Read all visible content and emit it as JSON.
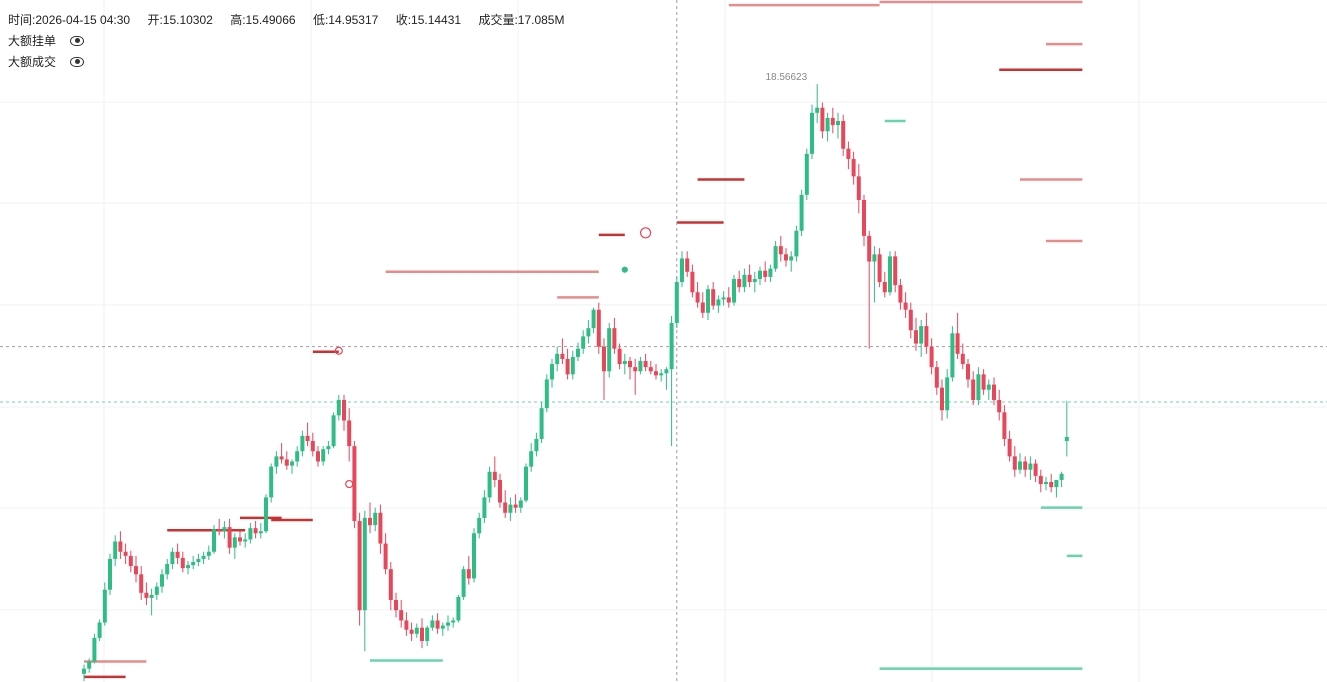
{
  "legend": {
    "time_label": "时间:",
    "time_value": "2026-04-15 04:30",
    "open_label": "开:",
    "open_value": "15.10302",
    "high_label": "高:",
    "high_value": "15.49066",
    "low_label": "低:",
    "low_value": "14.95317",
    "close_label": "收:",
    "close_value": "15.14431",
    "volume_label": "成交量:",
    "volume_value": "17.085M"
  },
  "overlays": [
    {
      "label": "大额挂单",
      "icon": "eye-icon"
    },
    {
      "label": "大额成交",
      "icon": "eye-icon"
    }
  ],
  "colors": {
    "up": "#2ebd85",
    "down": "#e8465a",
    "ask_line": "#e07070",
    "bid_line": "#5fd3a6",
    "dark_red": "#c62828"
  },
  "chart_data": {
    "type": "candlestick",
    "title": "",
    "high_marker_label": "18.56623",
    "ylim": [
      12.75,
      19.4
    ],
    "candles": [
      [
        12.83,
        12.92,
        12.76,
        12.88
      ],
      [
        12.88,
        12.98,
        12.84,
        12.95
      ],
      [
        12.95,
        13.22,
        12.93,
        13.18
      ],
      [
        13.18,
        13.36,
        13.15,
        13.33
      ],
      [
        13.33,
        13.72,
        13.3,
        13.65
      ],
      [
        13.65,
        14.0,
        13.6,
        13.95
      ],
      [
        13.95,
        14.18,
        13.88,
        14.12
      ],
      [
        14.12,
        14.22,
        13.95,
        14.02
      ],
      [
        14.02,
        14.1,
        13.9,
        13.98
      ],
      [
        13.98,
        14.03,
        13.82,
        13.88
      ],
      [
        13.88,
        13.98,
        13.72,
        13.8
      ],
      [
        13.8,
        13.88,
        13.55,
        13.62
      ],
      [
        13.62,
        13.72,
        13.5,
        13.57
      ],
      [
        13.57,
        13.66,
        13.4,
        13.6
      ],
      [
        13.6,
        13.72,
        13.55,
        13.68
      ],
      [
        13.68,
        13.85,
        13.62,
        13.8
      ],
      [
        13.8,
        13.95,
        13.75,
        13.9
      ],
      [
        13.9,
        14.06,
        13.85,
        14.02
      ],
      [
        14.02,
        14.1,
        13.9,
        13.96
      ],
      [
        13.96,
        14.02,
        13.82,
        13.86
      ],
      [
        13.86,
        13.93,
        13.8,
        13.89
      ],
      [
        13.89,
        13.98,
        13.85,
        13.92
      ],
      [
        13.92,
        14.0,
        13.88,
        13.95
      ],
      [
        13.95,
        14.02,
        13.9,
        13.98
      ],
      [
        13.98,
        14.08,
        13.94,
        14.02
      ],
      [
        14.02,
        14.28,
        14.0,
        14.24
      ],
      [
        14.24,
        14.34,
        14.18,
        14.22
      ],
      [
        14.22,
        14.32,
        14.15,
        14.26
      ],
      [
        14.26,
        14.34,
        14.0,
        14.06
      ],
      [
        14.06,
        14.2,
        13.95,
        14.16
      ],
      [
        14.16,
        14.22,
        14.08,
        14.12
      ],
      [
        14.12,
        14.2,
        14.06,
        14.14
      ],
      [
        14.14,
        14.3,
        14.1,
        14.25
      ],
      [
        14.25,
        14.32,
        14.15,
        14.2
      ],
      [
        14.2,
        14.3,
        14.15,
        14.22
      ],
      [
        14.22,
        14.58,
        14.2,
        14.55
      ],
      [
        14.55,
        14.88,
        14.5,
        14.85
      ],
      [
        14.85,
        15.0,
        14.78,
        14.95
      ],
      [
        14.95,
        15.08,
        14.88,
        14.92
      ],
      [
        14.92,
        15.0,
        14.82,
        14.86
      ],
      [
        14.86,
        14.92,
        14.78,
        14.9
      ],
      [
        14.9,
        15.05,
        14.85,
        15.0
      ],
      [
        15.0,
        15.2,
        14.95,
        15.15
      ],
      [
        15.15,
        15.28,
        15.05,
        15.1
      ],
      [
        15.1,
        15.18,
        14.95,
        15.0
      ],
      [
        15.0,
        15.05,
        14.85,
        14.9
      ],
      [
        14.9,
        15.05,
        14.86,
        15.02
      ],
      [
        15.02,
        15.1,
        14.97,
        15.05
      ],
      [
        15.05,
        15.38,
        15.03,
        15.35
      ],
      [
        15.35,
        15.55,
        15.3,
        15.5
      ],
      [
        15.5,
        15.55,
        15.2,
        15.3
      ],
      [
        15.3,
        15.42,
        14.9,
        15.05
      ],
      [
        15.05,
        15.1,
        14.25,
        14.32
      ],
      [
        14.32,
        14.4,
        13.3,
        13.45
      ],
      [
        13.45,
        14.42,
        13.05,
        14.35
      ],
      [
        14.35,
        14.5,
        14.2,
        14.28
      ],
      [
        14.28,
        14.45,
        14.22,
        14.4
      ],
      [
        14.4,
        14.48,
        14.0,
        14.1
      ],
      [
        14.1,
        14.2,
        13.8,
        13.85
      ],
      [
        13.85,
        13.92,
        13.45,
        13.55
      ],
      [
        13.55,
        13.62,
        13.38,
        13.45
      ],
      [
        13.45,
        13.55,
        13.28,
        13.35
      ],
      [
        13.35,
        13.43,
        13.2,
        13.26
      ],
      [
        13.26,
        13.33,
        13.15,
        13.22
      ],
      [
        13.22,
        13.32,
        13.18,
        13.28
      ],
      [
        13.28,
        13.37,
        13.08,
        13.15
      ],
      [
        13.15,
        13.3,
        13.1,
        13.28
      ],
      [
        13.28,
        13.4,
        13.25,
        13.35
      ],
      [
        13.35,
        13.42,
        13.22,
        13.27
      ],
      [
        13.27,
        13.33,
        13.2,
        13.3
      ],
      [
        13.3,
        13.4,
        13.25,
        13.33
      ],
      [
        13.33,
        13.38,
        13.28,
        13.35
      ],
      [
        13.35,
        13.6,
        13.33,
        13.58
      ],
      [
        13.58,
        13.88,
        13.55,
        13.85
      ],
      [
        13.85,
        13.98,
        13.7,
        13.76
      ],
      [
        13.76,
        14.25,
        13.72,
        14.2
      ],
      [
        14.2,
        14.4,
        14.15,
        14.35
      ],
      [
        14.35,
        14.62,
        14.3,
        14.55
      ],
      [
        14.55,
        14.85,
        14.5,
        14.8
      ],
      [
        14.8,
        14.95,
        14.65,
        14.72
      ],
      [
        14.72,
        14.78,
        14.45,
        14.5
      ],
      [
        14.5,
        14.62,
        14.35,
        14.4
      ],
      [
        14.4,
        14.55,
        14.32,
        14.48
      ],
      [
        14.48,
        14.58,
        14.4,
        14.45
      ],
      [
        14.45,
        14.55,
        14.4,
        14.52
      ],
      [
        14.52,
        14.88,
        14.5,
        14.85
      ],
      [
        14.85,
        15.08,
        14.8,
        15.0
      ],
      [
        15.0,
        15.18,
        14.95,
        15.12
      ],
      [
        15.12,
        15.48,
        15.08,
        15.42
      ],
      [
        15.42,
        15.75,
        15.38,
        15.7
      ],
      [
        15.7,
        15.9,
        15.62,
        15.85
      ],
      [
        15.85,
        16.02,
        15.78,
        15.95
      ],
      [
        15.95,
        16.1,
        15.85,
        15.9
      ],
      [
        15.9,
        16.0,
        15.7,
        15.75
      ],
      [
        15.75,
        15.98,
        15.7,
        15.92
      ],
      [
        15.92,
        16.06,
        15.88,
        16.0
      ],
      [
        16.0,
        16.18,
        15.95,
        16.12
      ],
      [
        16.12,
        16.28,
        16.05,
        16.2
      ],
      [
        16.2,
        16.4,
        16.15,
        16.38
      ],
      [
        16.38,
        16.45,
        15.95,
        16.02
      ],
      [
        16.02,
        16.1,
        15.5,
        15.78
      ],
      [
        15.78,
        16.25,
        15.72,
        16.2
      ],
      [
        16.2,
        16.3,
        15.95,
        16.0
      ],
      [
        16.0,
        16.05,
        15.8,
        15.85
      ],
      [
        15.85,
        15.95,
        15.75,
        15.88
      ],
      [
        15.88,
        15.92,
        15.7,
        15.82
      ],
      [
        15.82,
        15.9,
        15.55,
        15.78
      ],
      [
        15.78,
        15.92,
        15.75,
        15.88
      ],
      [
        15.88,
        15.95,
        15.78,
        15.82
      ],
      [
        15.82,
        15.88,
        15.75,
        15.78
      ],
      [
        15.78,
        15.85,
        15.7,
        15.74
      ],
      [
        15.74,
        15.8,
        15.68,
        15.76
      ],
      [
        15.76,
        15.82,
        15.6,
        15.8
      ],
      [
        15.8,
        16.32,
        15.05,
        16.25
      ],
      [
        16.25,
        16.7,
        16.2,
        16.65
      ],
      [
        16.65,
        16.95,
        16.6,
        16.88
      ],
      [
        16.88,
        16.95,
        16.7,
        16.75
      ],
      [
        16.75,
        16.82,
        16.5,
        16.55
      ],
      [
        16.55,
        16.65,
        16.4,
        16.45
      ],
      [
        16.45,
        16.55,
        16.3,
        16.35
      ],
      [
        16.35,
        16.62,
        16.28,
        16.58
      ],
      [
        16.58,
        16.65,
        16.38,
        16.42
      ],
      [
        16.42,
        16.52,
        16.35,
        16.48
      ],
      [
        16.48,
        16.56,
        16.42,
        16.5
      ],
      [
        16.5,
        16.6,
        16.4,
        16.45
      ],
      [
        16.45,
        16.72,
        16.42,
        16.68
      ],
      [
        16.68,
        16.76,
        16.55,
        16.6
      ],
      [
        16.6,
        16.78,
        16.55,
        16.72
      ],
      [
        16.72,
        16.82,
        16.6,
        16.65
      ],
      [
        16.65,
        16.75,
        16.55,
        16.68
      ],
      [
        16.68,
        16.8,
        16.62,
        16.76
      ],
      [
        16.76,
        16.85,
        16.65,
        16.7
      ],
      [
        16.7,
        16.82,
        16.65,
        16.78
      ],
      [
        16.78,
        17.05,
        16.75,
        17.0
      ],
      [
        17.0,
        17.1,
        16.85,
        16.92
      ],
      [
        16.92,
        16.98,
        16.8,
        16.86
      ],
      [
        16.86,
        16.95,
        16.75,
        16.9
      ],
      [
        16.9,
        17.2,
        16.85,
        17.15
      ],
      [
        17.15,
        17.55,
        17.1,
        17.5
      ],
      [
        17.5,
        17.95,
        17.45,
        17.9
      ],
      [
        17.9,
        18.38,
        17.85,
        18.3
      ],
      [
        18.3,
        18.58,
        18.2,
        18.35
      ],
      [
        18.35,
        18.4,
        18.05,
        18.12
      ],
      [
        18.12,
        18.3,
        18.02,
        18.25
      ],
      [
        18.25,
        18.35,
        18.1,
        18.18
      ],
      [
        18.18,
        18.3,
        18.05,
        18.22
      ],
      [
        18.22,
        18.28,
        17.88,
        17.95
      ],
      [
        17.95,
        18.02,
        17.75,
        17.85
      ],
      [
        17.85,
        17.92,
        17.6,
        17.68
      ],
      [
        17.68,
        17.8,
        17.32,
        17.45
      ],
      [
        17.45,
        17.5,
        17.0,
        17.1
      ],
      [
        17.1,
        17.15,
        16.0,
        16.85
      ],
      [
        16.85,
        17.0,
        16.45,
        16.92
      ],
      [
        16.92,
        16.98,
        16.6,
        16.65
      ],
      [
        16.65,
        16.75,
        16.5,
        16.55
      ],
      [
        16.55,
        16.95,
        16.52,
        16.9
      ],
      [
        16.9,
        16.95,
        16.55,
        16.62
      ],
      [
        16.62,
        16.68,
        16.38,
        16.45
      ],
      [
        16.45,
        16.55,
        16.3,
        16.38
      ],
      [
        16.38,
        16.45,
        16.1,
        16.18
      ],
      [
        16.18,
        16.3,
        15.98,
        16.05
      ],
      [
        16.05,
        16.28,
        15.92,
        16.22
      ],
      [
        16.22,
        16.35,
        15.95,
        16.02
      ],
      [
        16.02,
        16.1,
        15.75,
        15.82
      ],
      [
        15.82,
        15.88,
        15.55,
        15.62
      ],
      [
        15.62,
        15.7,
        15.3,
        15.4
      ],
      [
        15.4,
        15.8,
        15.32,
        15.72
      ],
      [
        15.72,
        16.22,
        15.68,
        16.15
      ],
      [
        16.15,
        16.35,
        15.9,
        15.95
      ],
      [
        15.95,
        16.05,
        15.8,
        15.85
      ],
      [
        15.85,
        15.9,
        15.62,
        15.7
      ],
      [
        15.7,
        15.78,
        15.45,
        15.5
      ],
      [
        15.5,
        15.82,
        15.45,
        15.75
      ],
      [
        15.75,
        15.8,
        15.55,
        15.6
      ],
      [
        15.6,
        15.7,
        15.5,
        15.65
      ],
      [
        15.65,
        15.72,
        15.45,
        15.5
      ],
      [
        15.5,
        15.6,
        15.3,
        15.38
      ],
      [
        15.38,
        15.45,
        15.05,
        15.12
      ],
      [
        15.12,
        15.2,
        14.9,
        14.95
      ],
      [
        14.95,
        15.05,
        14.75,
        14.82
      ],
      [
        14.82,
        14.98,
        14.78,
        14.9
      ],
      [
        14.9,
        14.95,
        14.75,
        14.82
      ],
      [
        14.82,
        14.95,
        14.72,
        14.88
      ],
      [
        14.88,
        14.92,
        14.7,
        14.76
      ],
      [
        14.76,
        14.82,
        14.6,
        14.68
      ],
      [
        14.68,
        14.75,
        14.62,
        14.7
      ],
      [
        14.7,
        14.78,
        14.6,
        14.65
      ],
      [
        14.65,
        14.72,
        14.55,
        14.72
      ],
      [
        14.72,
        14.8,
        14.65,
        14.78
      ],
      [
        15.1,
        15.49,
        14.95,
        15.14
      ]
    ],
    "reference_lines": [
      {
        "price": 16.02,
        "style": "dashed",
        "color": "#9e9e9e"
      },
      {
        "price": 15.48,
        "style": "dashed",
        "color": "#6cd6ae"
      }
    ],
    "crosshair_x_index": 114,
    "large_orders": [
      {
        "start_index": 0,
        "end_index": 12,
        "price": 12.95,
        "side": "ask"
      },
      {
        "start_index": 0,
        "end_index": 8,
        "price": 12.8,
        "side": "ask-dark"
      },
      {
        "start_index": 16,
        "end_index": 31,
        "price": 14.23,
        "side": "ask-dark"
      },
      {
        "start_index": 30,
        "end_index": 38,
        "price": 14.35,
        "side": "ask-dark"
      },
      {
        "start_index": 36,
        "end_index": 44,
        "price": 14.33,
        "side": "ask-dark"
      },
      {
        "start_index": 44,
        "end_index": 49,
        "price": 15.97,
        "side": "ask-dark"
      },
      {
        "start_index": 55,
        "end_index": 69,
        "price": 12.96,
        "side": "bid"
      },
      {
        "start_index": 58,
        "end_index": 99,
        "price": 16.75,
        "side": "ask"
      },
      {
        "start_index": 91,
        "end_index": 99,
        "price": 16.5,
        "side": "ask"
      },
      {
        "start_index": 99,
        "end_index": 104,
        "price": 17.11,
        "side": "ask-dark"
      },
      {
        "start_index": 114,
        "end_index": 123,
        "price": 17.23,
        "side": "ask-dark"
      },
      {
        "start_index": 118,
        "end_index": 127,
        "price": 17.65,
        "side": "ask-dark"
      },
      {
        "start_index": 124,
        "end_index": 153,
        "price": 19.35,
        "side": "ask"
      },
      {
        "start_index": 153,
        "end_index": 192,
        "price": 19.38,
        "side": "ask"
      },
      {
        "start_index": 154,
        "end_index": 158,
        "price": 18.22,
        "side": "bid"
      },
      {
        "start_index": 176,
        "end_index": 192,
        "price": 18.72,
        "side": "ask-dark"
      },
      {
        "start_index": 185,
        "end_index": 192,
        "price": 18.97,
        "side": "ask"
      },
      {
        "start_index": 180,
        "end_index": 192,
        "price": 17.65,
        "side": "ask"
      },
      {
        "start_index": 185,
        "end_index": 192,
        "price": 17.05,
        "side": "ask"
      },
      {
        "start_index": 184,
        "end_index": 192,
        "price": 14.45,
        "side": "bid"
      },
      {
        "start_index": 189,
        "end_index": 192,
        "price": 13.98,
        "side": "bid"
      },
      {
        "start_index": 153,
        "end_index": 192,
        "price": 12.88,
        "side": "bid"
      }
    ],
    "trade_markers": [
      {
        "index": 49,
        "price": 15.98,
        "type": "circle"
      },
      {
        "index": 51,
        "price": 14.68,
        "type": "circle"
      },
      {
        "index": 108,
        "price": 17.13,
        "type": "circle-large"
      },
      {
        "index": 104,
        "price": 16.77,
        "type": "dot"
      }
    ]
  }
}
